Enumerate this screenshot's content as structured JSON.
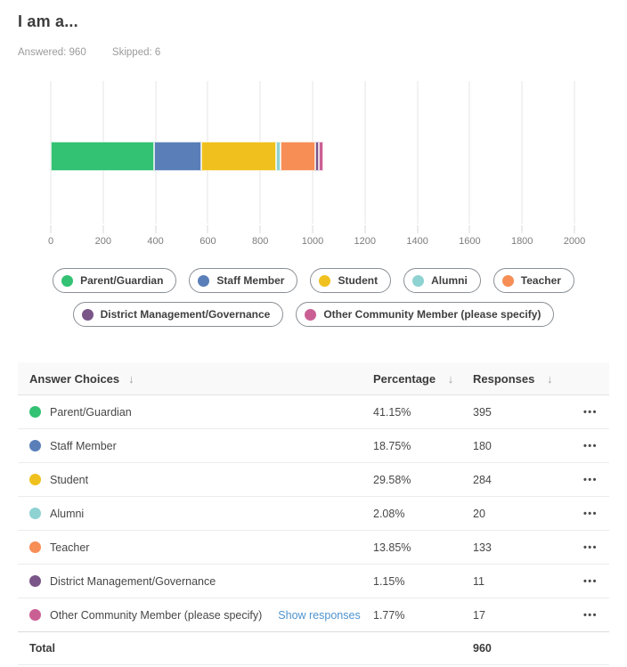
{
  "header": {
    "title": "I am a...",
    "answered": "Answered: 960",
    "skipped": "Skipped: 6"
  },
  "colors": {
    "parent_guardian": "#33c173",
    "staff_member": "#5a7fb8",
    "student": "#f0c11e",
    "alumni": "#8ed2d2",
    "teacher": "#f68e56",
    "district_management": "#7a5588",
    "other_community": "#ca5f94",
    "gridline": "#e6e6e6",
    "link": "#4e93cf"
  },
  "chart_data": {
    "type": "bar",
    "orientation": "horizontal-stacked",
    "title": "",
    "xlabel": "",
    "ylabel": "",
    "grid": true,
    "legend_position": "bottom",
    "legend_rows": [
      5,
      2
    ],
    "axis": {
      "min": 0,
      "max": 2000,
      "ticks": [
        0,
        200,
        400,
        600,
        800,
        1000,
        1200,
        1400,
        1600,
        1800,
        2000
      ]
    },
    "series": [
      {
        "name": "Parent/Guardian",
        "value": 395,
        "color": "#33c173"
      },
      {
        "name": "Staff Member",
        "value": 180,
        "color": "#5a7fb8"
      },
      {
        "name": "Student",
        "value": 284,
        "color": "#f0c11e"
      },
      {
        "name": "Alumni",
        "value": 20,
        "color": "#8ed2d2"
      },
      {
        "name": "Teacher",
        "value": 133,
        "color": "#f68e56"
      },
      {
        "name": "District Management/Governance",
        "value": 11,
        "color": "#7a5588"
      },
      {
        "name": "Other Community Member (please specify)",
        "value": 17,
        "color": "#ca5f94"
      }
    ]
  },
  "table": {
    "columns": [
      "Answer Choices",
      "Percentage",
      "Responses"
    ],
    "sort_icon": "↓",
    "row_menu_icon": "•••",
    "rows": [
      {
        "label": "Parent/Guardian",
        "color": "#33c173",
        "percentage": "41.15%",
        "responses": "395"
      },
      {
        "label": "Staff Member",
        "color": "#5a7fb8",
        "percentage": "18.75%",
        "responses": "180"
      },
      {
        "label": "Student",
        "color": "#f0c11e",
        "percentage": "29.58%",
        "responses": "284"
      },
      {
        "label": "Alumni",
        "color": "#8ed2d2",
        "percentage": "2.08%",
        "responses": "20"
      },
      {
        "label": "Teacher",
        "color": "#f68e56",
        "percentage": "13.85%",
        "responses": "133"
      },
      {
        "label": "District Management/Governance",
        "color": "#7a5588",
        "percentage": "1.15%",
        "responses": "11"
      },
      {
        "label": "Other Community Member (please specify)",
        "color": "#ca5f94",
        "percentage": "1.77%",
        "responses": "17",
        "link": "Show responses"
      }
    ],
    "total_label": "Total",
    "total_value": "960"
  }
}
